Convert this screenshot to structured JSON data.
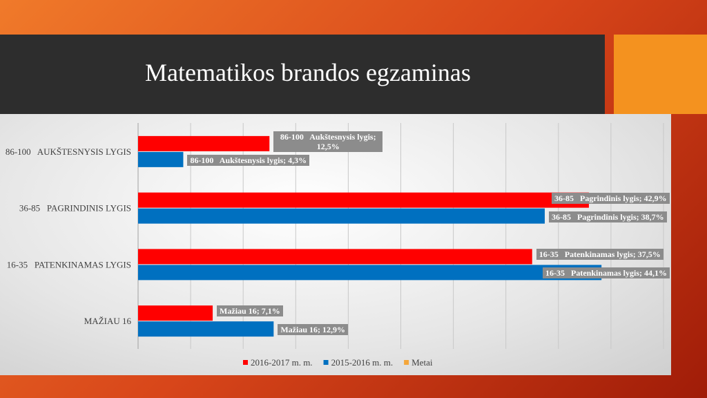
{
  "chart_data": {
    "type": "hbar",
    "title": "Matematikos brandos egzaminas",
    "categories": [
      "86-100   AUKŠTESNYSIS LYGIS",
      "36-85   PAGRINDINIS LYGIS",
      "16-35   PATENKINAMAS LYGIS",
      "MAŽIAU 16"
    ],
    "series": [
      {
        "name": "2016-2017 m. m.",
        "color": "#ff0000",
        "values": [
          12.5,
          42.9,
          37.5,
          7.1
        ],
        "value_labels": [
          "86-100   Aukštesnysis lygis; 12,5%",
          "36-85   Pagrindinis lygis; 42,9%",
          "16-35   Patenkinamas lygis; 37,5%",
          "Mažiau 16; 7,1%"
        ]
      },
      {
        "name": "2015-2016 m. m.",
        "color": "#0070c0",
        "values": [
          4.3,
          38.7,
          44.1,
          12.9
        ],
        "value_labels": [
          "86-100   Aukštesnysis lygis; 4,3%",
          "36-85   Pagrindinis lygis; 38,7%",
          "16-35   Patenkinamas lygis; 44,1%",
          "Mažiau 16; 12,9%"
        ]
      },
      {
        "name": "Metai",
        "color": "#f4a63a",
        "values": [
          null,
          null,
          null,
          null
        ]
      }
    ],
    "xlim": [
      0,
      50
    ],
    "xticks": [
      0,
      5,
      10,
      15,
      20,
      25,
      30,
      35,
      40,
      45,
      50
    ],
    "grid": true
  }
}
